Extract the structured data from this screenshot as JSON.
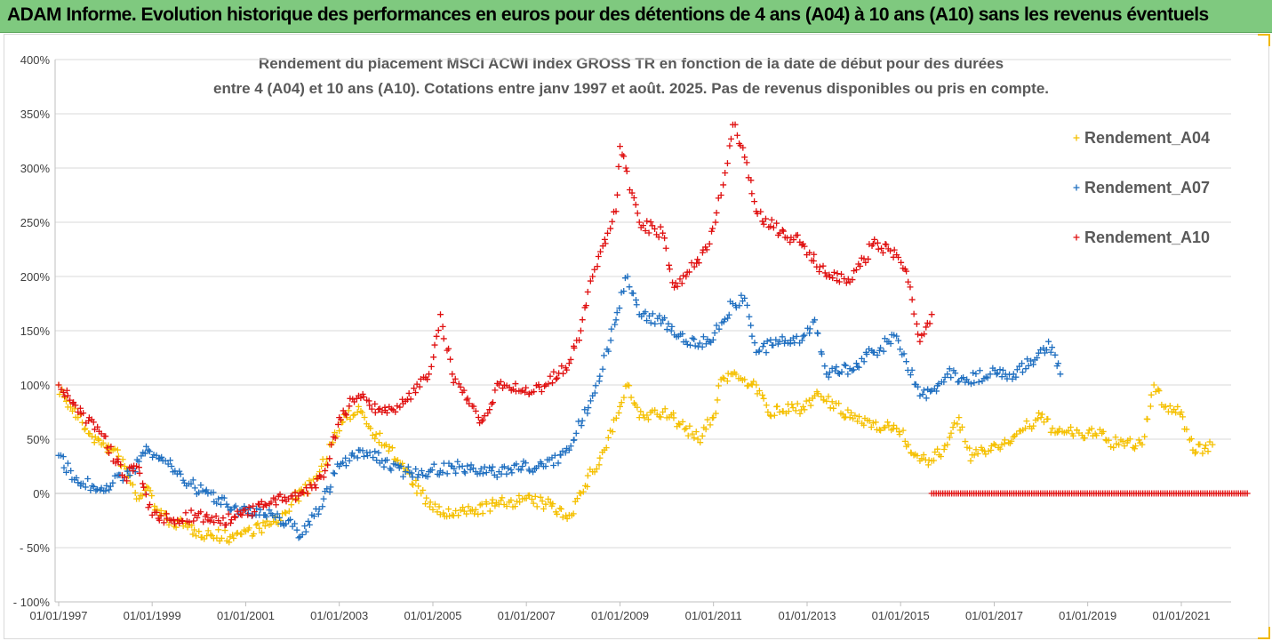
{
  "banner": {
    "text": "ADAM Informe. Evolution historique des performances en euros pour des détentions de 4 ans (A04) à 10 ans (A10) sans les revenus éventuels"
  },
  "chart_data": {
    "type": "scatter",
    "title": "Rendement du placement MSCI ACWI Index GROSS TR en fonction de la date de début pour des durées",
    "subtitle": "entre 4 (A04) et 10 ans (A10). Cotations entre janv 1997 et août. 2025. Pas de revenus disponibles ou pris en compte.",
    "xlabel": "",
    "ylabel": "",
    "ylim": [
      -100,
      400
    ],
    "y_unit": "%",
    "yticks": [
      -100,
      -50,
      0,
      50,
      100,
      150,
      200,
      250,
      300,
      350,
      400
    ],
    "ytick_labels": [
      "- 100%",
      "- 50%",
      "0%",
      "50%",
      "100%",
      "150%",
      "200%",
      "250%",
      "300%",
      "350%",
      "400%"
    ],
    "xlim": [
      "1997-01-01",
      "2022-07-01"
    ],
    "xticks": [
      "1997-01-01",
      "1999-01-01",
      "2001-01-01",
      "2003-01-01",
      "2005-01-01",
      "2007-01-01",
      "2009-01-01",
      "2011-01-01",
      "2013-01-01",
      "2015-01-01",
      "2017-01-01",
      "2019-01-01",
      "2021-01-01"
    ],
    "xtick_labels": [
      "01/01/1997",
      "01/01/1999",
      "01/01/2001",
      "01/01/2003",
      "01/01/2005",
      "01/01/2007",
      "01/01/2009",
      "01/01/2011",
      "01/01/2013",
      "01/01/2015",
      "01/01/2017",
      "01/01/2019",
      "01/01/2021"
    ],
    "grid": true,
    "legend_position": "right",
    "series": [
      {
        "name": "Rendement_A04",
        "color": "#f5c000",
        "points": [
          [
            "1997-01-01",
            100
          ],
          [
            "1997-03-01",
            85
          ],
          [
            "1997-06-01",
            70
          ],
          [
            "1997-09-01",
            55
          ],
          [
            "1997-12-01",
            45
          ],
          [
            "1998-03-01",
            40
          ],
          [
            "1998-06-01",
            25
          ],
          [
            "1998-09-01",
            -5
          ],
          [
            "1998-12-01",
            5
          ],
          [
            "1999-03-01",
            -20
          ],
          [
            "1999-06-01",
            -25
          ],
          [
            "1999-09-01",
            -30
          ],
          [
            "2000-01-01",
            -35
          ],
          [
            "2000-04-01",
            -38
          ],
          [
            "2000-09-01",
            -40
          ],
          [
            "2001-01-01",
            -35
          ],
          [
            "2001-06-01",
            -30
          ],
          [
            "2001-10-01",
            -25
          ],
          [
            "2002-01-01",
            -5
          ],
          [
            "2002-04-01",
            0
          ],
          [
            "2002-08-01",
            20
          ],
          [
            "2002-11-01",
            45
          ],
          [
            "2003-03-01",
            70
          ],
          [
            "2003-06-01",
            80
          ],
          [
            "2003-09-01",
            60
          ],
          [
            "2004-01-01",
            45
          ],
          [
            "2004-06-01",
            20
          ],
          [
            "2004-10-01",
            0
          ],
          [
            "2005-01-01",
            -15
          ],
          [
            "2005-06-01",
            -20
          ],
          [
            "2005-12-01",
            -15
          ],
          [
            "2006-06-01",
            -10
          ],
          [
            "2006-12-01",
            -5
          ],
          [
            "2007-06-01",
            -10
          ],
          [
            "2007-12-01",
            -20
          ],
          [
            "2008-03-01",
            0
          ],
          [
            "2008-06-01",
            20
          ],
          [
            "2008-09-01",
            40
          ],
          [
            "2009-01-01",
            80
          ],
          [
            "2009-03-01",
            100
          ],
          [
            "2009-06-01",
            70
          ],
          [
            "2009-12-01",
            75
          ],
          [
            "2010-06-01",
            60
          ],
          [
            "2010-09-01",
            50
          ],
          [
            "2011-01-01",
            70
          ],
          [
            "2011-03-01",
            105
          ],
          [
            "2011-06-01",
            110
          ],
          [
            "2011-09-01",
            105
          ],
          [
            "2011-12-01",
            100
          ],
          [
            "2012-03-01",
            75
          ],
          [
            "2012-06-01",
            75
          ],
          [
            "2012-12-01",
            80
          ],
          [
            "2013-03-01",
            90
          ],
          [
            "2013-06-01",
            85
          ],
          [
            "2013-12-01",
            70
          ],
          [
            "2014-06-01",
            65
          ],
          [
            "2014-12-01",
            60
          ],
          [
            "2015-03-01",
            45
          ],
          [
            "2015-06-01",
            30
          ],
          [
            "2015-09-01",
            30
          ],
          [
            "2016-01-01",
            45
          ],
          [
            "2016-04-01",
            70
          ],
          [
            "2016-07-01",
            30
          ],
          [
            "2016-10-01",
            40
          ],
          [
            "2017-03-01",
            45
          ],
          [
            "2017-09-01",
            60
          ],
          [
            "2018-01-01",
            70
          ],
          [
            "2018-04-01",
            60
          ],
          [
            "2018-09-01",
            55
          ],
          [
            "2019-03-01",
            55
          ],
          [
            "2019-09-01",
            45
          ],
          [
            "2020-03-01",
            45
          ],
          [
            "2020-06-01",
            100
          ],
          [
            "2020-09-01",
            80
          ],
          [
            "2021-01-01",
            75
          ],
          [
            "2021-04-01",
            40
          ],
          [
            "2021-09-01",
            45
          ]
        ]
      },
      {
        "name": "Rendement_A07",
        "color": "#1f6fc0",
        "points": [
          [
            "1997-01-01",
            35
          ],
          [
            "1997-06-01",
            10
          ],
          [
            "1997-12-01",
            5
          ],
          [
            "1998-06-01",
            15
          ],
          [
            "1998-12-01",
            40
          ],
          [
            "1999-06-01",
            25
          ],
          [
            "1999-12-01",
            5
          ],
          [
            "2000-06-01",
            -5
          ],
          [
            "2000-12-01",
            -15
          ],
          [
            "2001-06-01",
            -20
          ],
          [
            "2001-12-01",
            -25
          ],
          [
            "2002-03-01",
            -40
          ],
          [
            "2002-09-01",
            -5
          ],
          [
            "2003-01-01",
            25
          ],
          [
            "2003-06-01",
            40
          ],
          [
            "2003-12-01",
            30
          ],
          [
            "2004-06-01",
            20
          ],
          [
            "2004-12-01",
            20
          ],
          [
            "2005-06-01",
            25
          ],
          [
            "2005-12-01",
            20
          ],
          [
            "2006-06-01",
            20
          ],
          [
            "2006-12-01",
            25
          ],
          [
            "2007-06-01",
            25
          ],
          [
            "2007-12-01",
            40
          ],
          [
            "2008-06-01",
            90
          ],
          [
            "2008-12-01",
            160
          ],
          [
            "2009-03-01",
            200
          ],
          [
            "2009-06-01",
            165
          ],
          [
            "2009-12-01",
            160
          ],
          [
            "2010-06-01",
            140
          ],
          [
            "2010-12-01",
            140
          ],
          [
            "2011-06-01",
            175
          ],
          [
            "2011-09-01",
            180
          ],
          [
            "2011-12-01",
            130
          ],
          [
            "2012-06-01",
            140
          ],
          [
            "2012-12-01",
            145
          ],
          [
            "2013-03-01",
            160
          ],
          [
            "2013-06-01",
            110
          ],
          [
            "2013-12-01",
            115
          ],
          [
            "2014-06-01",
            130
          ],
          [
            "2014-12-01",
            145
          ],
          [
            "2015-06-01",
            90
          ],
          [
            "2015-09-01",
            95
          ],
          [
            "2016-01-01",
            110
          ],
          [
            "2016-06-01",
            105
          ],
          [
            "2016-12-01",
            110
          ],
          [
            "2017-06-01",
            110
          ],
          [
            "2017-12-01",
            125
          ],
          [
            "2018-03-01",
            140
          ],
          [
            "2018-06-01",
            110
          ]
        ]
      },
      {
        "name": "Rendement_A10",
        "color": "#e01010",
        "points": [
          [
            "1997-01-01",
            100
          ],
          [
            "1997-06-01",
            75
          ],
          [
            "1997-12-01",
            55
          ],
          [
            "1998-06-01",
            15
          ],
          [
            "1998-09-01",
            25
          ],
          [
            "1999-01-01",
            -20
          ],
          [
            "1999-06-01",
            -25
          ],
          [
            "1999-12-01",
            -20
          ],
          [
            "2000-06-01",
            -25
          ],
          [
            "2000-12-01",
            -20
          ],
          [
            "2001-06-01",
            -10
          ],
          [
            "2001-12-01",
            -5
          ],
          [
            "2002-06-01",
            5
          ],
          [
            "2002-09-01",
            15
          ],
          [
            "2003-01-01",
            70
          ],
          [
            "2003-06-01",
            90
          ],
          [
            "2003-12-01",
            75
          ],
          [
            "2004-06-01",
            85
          ],
          [
            "2004-12-01",
            110
          ],
          [
            "2005-03-01",
            165
          ],
          [
            "2005-06-01",
            110
          ],
          [
            "2005-09-01",
            95
          ],
          [
            "2006-01-01",
            65
          ],
          [
            "2006-06-01",
            100
          ],
          [
            "2006-12-01",
            95
          ],
          [
            "2007-06-01",
            100
          ],
          [
            "2007-12-01",
            120
          ],
          [
            "2008-03-01",
            150
          ],
          [
            "2008-06-01",
            200
          ],
          [
            "2008-12-01",
            260
          ],
          [
            "2009-01-01",
            320
          ],
          [
            "2009-06-01",
            250
          ],
          [
            "2009-12-01",
            240
          ],
          [
            "2010-03-01",
            190
          ],
          [
            "2010-06-01",
            200
          ],
          [
            "2010-12-01",
            230
          ],
          [
            "2011-03-01",
            275
          ],
          [
            "2011-06-01",
            340
          ],
          [
            "2011-09-01",
            310
          ],
          [
            "2011-12-01",
            260
          ],
          [
            "2012-06-01",
            240
          ],
          [
            "2012-12-01",
            230
          ],
          [
            "2013-06-01",
            200
          ],
          [
            "2013-12-01",
            195
          ],
          [
            "2014-06-01",
            230
          ],
          [
            "2014-12-01",
            220
          ],
          [
            "2015-03-01",
            195
          ],
          [
            "2015-06-01",
            140
          ],
          [
            "2015-09-01",
            165
          ]
        ],
        "zero_segment": [
          "2015-09-01",
          "2022-06-01"
        ]
      }
    ]
  }
}
